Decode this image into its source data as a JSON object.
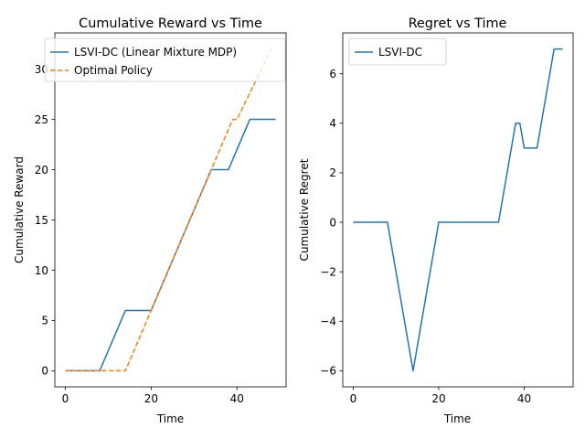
{
  "chart_data": [
    {
      "type": "line",
      "title": "Cumulative Reward vs Time",
      "xlabel": "Time",
      "ylabel": "Cumulative Reward",
      "xlim": [
        -2.45,
        51.45
      ],
      "ylim": [
        -1.6,
        33.6
      ],
      "xticks": [
        0,
        20,
        40
      ],
      "yticks": [
        0,
        5,
        10,
        15,
        20,
        25,
        30
      ],
      "grid": false,
      "legend_position": "upper left",
      "series": [
        {
          "name": "LSVI-DC (Linear Mixture MDP)",
          "color": "#1f77b4",
          "style": "solid",
          "points": [
            [
              0,
              0
            ],
            [
              8,
              0
            ],
            [
              14,
              6
            ],
            [
              20,
              6
            ],
            [
              34,
              20
            ],
            [
              38,
              20
            ],
            [
              43,
              25
            ],
            [
              49,
              25
            ]
          ]
        },
        {
          "name": "Optimal Policy",
          "color": "#ff7f0e",
          "style": "dashed",
          "points": [
            [
              0,
              0
            ],
            [
              14,
              0
            ],
            [
              39,
              25
            ],
            [
              40,
              25
            ],
            [
              48,
              32
            ]
          ]
        }
      ]
    },
    {
      "type": "line",
      "title": "Regret vs Time",
      "xlabel": "Time",
      "ylabel": "Cumulative Regret",
      "xlim": [
        -2.45,
        51.45
      ],
      "ylim": [
        -6.65,
        7.65
      ],
      "xticks": [
        0,
        20,
        40
      ],
      "yticks": [
        -6,
        -4,
        -2,
        0,
        2,
        4,
        6
      ],
      "grid": false,
      "legend_position": "upper left",
      "series": [
        {
          "name": "LSVI-DC",
          "color": "#1f77b4",
          "style": "solid",
          "points": [
            [
              0,
              0
            ],
            [
              8,
              0
            ],
            [
              14,
              -6
            ],
            [
              20,
              0
            ],
            [
              34,
              0
            ],
            [
              38,
              4
            ],
            [
              39,
              4
            ],
            [
              40,
              3
            ],
            [
              43,
              3
            ],
            [
              47,
              7
            ],
            [
              49,
              7
            ]
          ]
        }
      ]
    }
  ]
}
